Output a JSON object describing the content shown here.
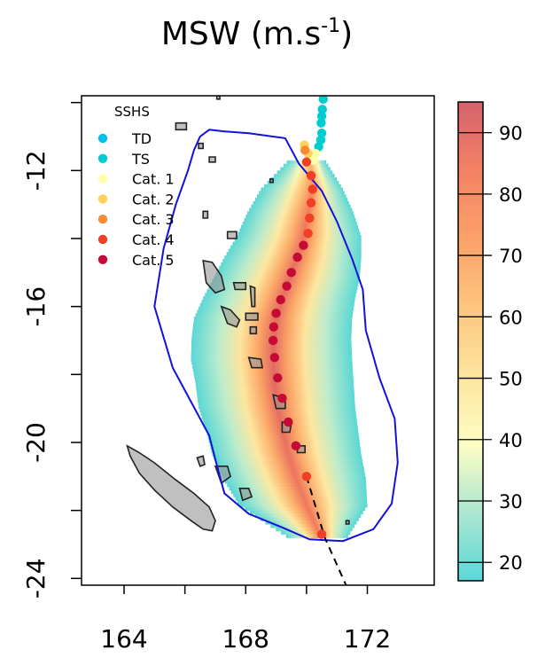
{
  "chart_data": {
    "type": "heatmap",
    "title": "MSW (m.s",
    "title_unit_sup": "-1",
    "title_close": ")",
    "xlim": [
      162.6,
      174.2
    ],
    "ylim": [
      -24.2,
      -9.8
    ],
    "x_ticks": [
      164,
      168,
      172
    ],
    "x_tick_labels": [
      "164",
      "168",
      "172"
    ],
    "x_minor_ticks": [
      166,
      170
    ],
    "y_ticks": [
      -12,
      -16,
      -20,
      -24
    ],
    "y_tick_labels": [
      "-12",
      "-16",
      "-20",
      "-24"
    ],
    "y_minor_ticks": [
      -10,
      -14,
      -18,
      -22
    ],
    "colorbar": {
      "range": [
        17,
        95
      ],
      "ticks": [
        20,
        30,
        40,
        50,
        60,
        70,
        80,
        90
      ],
      "tick_labels": [
        "20",
        "30",
        "40",
        "50",
        "60",
        "70",
        "80",
        "90"
      ],
      "colors": [
        "#52d6d6",
        "#a8e6cf",
        "#fdfdc0",
        "#fde39a",
        "#fdc277",
        "#fb9d62",
        "#f37b5c",
        "#d35a66"
      ]
    },
    "legend": {
      "title": "SSHS",
      "position": "top-left",
      "entries": [
        {
          "label": "TD",
          "color": "#00c0ec"
        },
        {
          "label": "TS",
          "color": "#00cdd0"
        },
        {
          "label": "Cat. 1",
          "color": "#ffffa8"
        },
        {
          "label": "Cat. 2",
          "color": "#fdd35e"
        },
        {
          "label": "Cat. 3",
          "color": "#fb8a33"
        },
        {
          "label": "Cat. 4",
          "color": "#ef3f24"
        },
        {
          "label": "Cat. 5",
          "color": "#c40a35"
        }
      ]
    },
    "track": {
      "lon": [
        170.55,
        170.52,
        170.5,
        170.48,
        170.5,
        170.47,
        170.4,
        170.3,
        170.2,
        170.05,
        169.93,
        169.95,
        170.0,
        170.15,
        170.2,
        170.15,
        170.1,
        170.05,
        169.9,
        169.7,
        169.5,
        169.35,
        169.15,
        169.0,
        168.92,
        168.9,
        168.95,
        169.05,
        169.2,
        169.4,
        169.65,
        170.0,
        170.5
      ],
      "lat": [
        -9.9,
        -10.2,
        -10.4,
        -10.6,
        -10.9,
        -11.1,
        -11.3,
        -11.5,
        -11.7,
        -11.5,
        -11.25,
        -11.4,
        -11.75,
        -12.15,
        -12.55,
        -12.95,
        -13.4,
        -13.85,
        -14.2,
        -14.55,
        -15.0,
        -15.4,
        -15.8,
        -16.2,
        -16.6,
        -17.0,
        -17.5,
        -18.1,
        -18.7,
        -19.4,
        -20.1,
        -21.0,
        -22.7
      ],
      "cat": [
        "TS",
        "TS",
        "TS",
        "TS",
        "TS",
        "TS",
        "TS",
        "Cat. 1",
        "Cat. 1",
        "Cat. 2",
        "Cat. 2",
        "Cat. 3",
        "Cat. 4",
        "Cat. 4",
        "Cat. 4",
        "Cat. 4",
        "Cat. 4",
        "Cat. 4",
        "Cat. 5",
        "Cat. 5",
        "Cat. 5",
        "Cat. 5",
        "Cat. 5",
        "Cat. 5",
        "Cat. 5",
        "Cat. 5",
        "Cat. 5",
        "Cat. 5",
        "Cat. 5",
        "Cat. 5",
        "Cat. 5",
        "Cat. 4",
        "Cat. 4"
      ],
      "dashed_extension": {
        "lon": [
          170.0,
          170.6,
          171.3
        ],
        "lat": [
          -21.0,
          -22.8,
          -24.2
        ]
      }
    },
    "wind_field": {
      "track_lon": [
        170.15,
        170.2,
        170.05,
        169.9,
        169.7,
        169.45,
        169.2,
        169.0,
        168.92,
        168.9,
        168.95,
        169.05,
        169.2,
        169.4,
        169.65,
        170.0,
        170.5
      ],
      "track_lat": [
        -11.7,
        -12.5,
        -13.2,
        -13.9,
        -14.5,
        -15.1,
        -15.7,
        -16.3,
        -16.9,
        -17.5,
        -18.2,
        -18.9,
        -19.6,
        -20.3,
        -21.0,
        -21.8,
        -22.8
      ],
      "peak_msw": [
        65,
        80,
        84,
        86,
        87,
        88,
        88,
        89,
        90,
        90,
        90,
        89,
        88,
        87,
        86,
        85,
        84
      ],
      "edge_msw": 18,
      "west_extent_deg": [
        0.8,
        1.7,
        2.0,
        2.2,
        2.4,
        2.5,
        2.6,
        2.7,
        2.7,
        2.7,
        2.6,
        2.6,
        2.5,
        2.5,
        2.4,
        2.2,
        1.0
      ],
      "east_extent_deg": [
        0.5,
        1.0,
        1.5,
        1.9,
        2.1,
        2.3,
        2.4,
        2.5,
        2.55,
        2.6,
        2.6,
        2.55,
        2.5,
        2.4,
        2.3,
        2.0,
        0.8
      ]
    },
    "boundary_polygon": {
      "lon": [
        166.8,
        167.3,
        168.1,
        169.3,
        169.75,
        170.5,
        171.0,
        171.5,
        171.85,
        171.95,
        172.4,
        172.9,
        173.0,
        172.8,
        172.2,
        171.2,
        170.1,
        169.2,
        168.1,
        167.3,
        167.0,
        166.8,
        165.6,
        165.0,
        165.3,
        165.7,
        166.1,
        166.3,
        166.5,
        166.8
      ],
      "lat": [
        -10.8,
        -10.85,
        -10.9,
        -11.05,
        -11.8,
        -12.6,
        -13.5,
        -14.6,
        -15.5,
        -16.7,
        -18.1,
        -19.3,
        -20.6,
        -21.8,
        -22.55,
        -22.9,
        -22.85,
        -22.5,
        -22.1,
        -21.5,
        -20.5,
        -19.8,
        -17.8,
        -16.0,
        -14.3,
        -13.0,
        -12.0,
        -11.4,
        -11.0,
        -10.8
      ]
    },
    "land_masses": {
      "new_caledonia": {
        "lon": [
          164.1,
          164.5,
          165.0,
          165.7,
          166.3,
          166.8,
          167.0,
          166.9,
          166.6,
          166.2,
          165.6,
          165.0,
          164.5,
          164.2,
          164.1
        ],
        "lat": [
          -20.1,
          -20.3,
          -20.6,
          -21.1,
          -21.5,
          -21.9,
          -22.3,
          -22.6,
          -22.55,
          -22.3,
          -21.9,
          -21.4,
          -20.9,
          -20.4,
          -20.1
        ]
      },
      "loyalty_lifou": {
        "lon": [
          167.0,
          167.4,
          167.5,
          167.2,
          167.0
        ],
        "lat": [
          -20.7,
          -20.7,
          -21.0,
          -21.2,
          -20.7
        ]
      },
      "loyalty_mare": {
        "lon": [
          167.8,
          168.1,
          168.2,
          167.9,
          167.8
        ],
        "lat": [
          -21.35,
          -21.35,
          -21.6,
          -21.7,
          -21.35
        ]
      },
      "ouvea": {
        "lon": [
          166.4,
          166.6,
          166.65,
          166.5,
          166.4
        ],
        "lat": [
          -20.45,
          -20.4,
          -20.65,
          -20.7,
          -20.45
        ]
      },
      "espiritu_santo": {
        "lon": [
          166.6,
          166.9,
          167.2,
          167.3,
          167.0,
          166.7,
          166.6
        ],
        "lat": [
          -14.65,
          -14.7,
          -15.1,
          -15.5,
          -15.6,
          -15.3,
          -14.65
        ]
      },
      "malekula": {
        "lon": [
          167.2,
          167.5,
          167.8,
          167.7,
          167.4,
          167.2
        ],
        "lat": [
          -16.0,
          -16.1,
          -16.4,
          -16.6,
          -16.5,
          -16.0
        ]
      },
      "efate": {
        "lon": [
          168.1,
          168.5,
          168.55,
          168.2,
          168.1
        ],
        "lat": [
          -17.5,
          -17.55,
          -17.8,
          -17.8,
          -17.5
        ]
      },
      "erromango": {
        "lon": [
          168.9,
          169.3,
          169.3,
          169.0,
          168.9
        ],
        "lat": [
          -18.6,
          -18.7,
          -19.0,
          -19.0,
          -18.6
        ]
      },
      "tanna": {
        "lon": [
          169.2,
          169.5,
          169.45,
          169.2,
          169.2
        ],
        "lat": [
          -19.4,
          -19.45,
          -19.7,
          -19.7,
          -19.4
        ]
      },
      "ambrym": {
        "lon": [
          168.0,
          168.4,
          168.4,
          168.0,
          168.0
        ],
        "lat": [
          -16.2,
          -16.2,
          -16.4,
          -16.4,
          -16.2
        ]
      },
      "pentecost": {
        "lon": [
          168.15,
          168.3,
          168.3,
          168.2,
          168.15
        ],
        "lat": [
          -15.4,
          -15.45,
          -16.0,
          -16.0,
          -15.4
        ]
      },
      "aoba": {
        "lon": [
          167.6,
          168.0,
          168.0,
          167.65,
          167.6
        ],
        "lat": [
          -15.3,
          -15.3,
          -15.5,
          -15.5,
          -15.3
        ]
      },
      "epi": {
        "lon": [
          168.15,
          168.35,
          168.35,
          168.15,
          168.15
        ],
        "lat": [
          -16.6,
          -16.6,
          -16.8,
          -16.8,
          -16.6
        ]
      },
      "banks": {
        "lon": [
          167.4,
          167.7,
          167.7,
          167.4,
          167.4
        ],
        "lat": [
          -13.8,
          -13.8,
          -14.0,
          -14.0,
          -13.8
        ]
      },
      "torres": {
        "lon": [
          166.6,
          166.75,
          166.75,
          166.6,
          166.6
        ],
        "lat": [
          -13.2,
          -13.2,
          -13.4,
          -13.4,
          -13.2
        ]
      },
      "anatom": {
        "lon": [
          169.7,
          169.95,
          169.95,
          169.7,
          169.7
        ],
        "lat": [
          -20.1,
          -20.1,
          -20.3,
          -20.3,
          -20.1
        ]
      },
      "santa_cruz": {
        "lon": [
          165.7,
          166.05,
          166.05,
          165.7,
          165.7
        ],
        "lat": [
          -10.6,
          -10.6,
          -10.8,
          -10.8,
          -10.6
        ]
      },
      "utupua": {
        "lon": [
          166.45,
          166.6,
          166.6,
          166.45,
          166.45
        ],
        "lat": [
          -11.2,
          -11.2,
          -11.35,
          -11.35,
          -11.2
        ]
      },
      "vanikoro": {
        "lon": [
          166.8,
          167.0,
          167.0,
          166.8,
          166.8
        ],
        "lat": [
          -11.6,
          -11.6,
          -11.75,
          -11.75,
          -11.6
        ]
      },
      "duff": {
        "lon": [
          167.05,
          167.15,
          167.15,
          167.05,
          167.05
        ],
        "lat": [
          -9.8,
          -9.8,
          -9.9,
          -9.9,
          -9.8
        ]
      },
      "tikopia": {
        "lon": [
          168.8,
          168.9,
          168.9,
          168.8,
          168.8
        ],
        "lat": [
          -12.25,
          -12.25,
          -12.35,
          -12.35,
          -12.25
        ]
      },
      "matthew": {
        "lon": [
          171.3,
          171.4,
          171.4,
          171.3,
          171.3
        ],
        "lat": [
          -22.3,
          -22.3,
          -22.4,
          -22.4,
          -22.3
        ]
      }
    }
  }
}
